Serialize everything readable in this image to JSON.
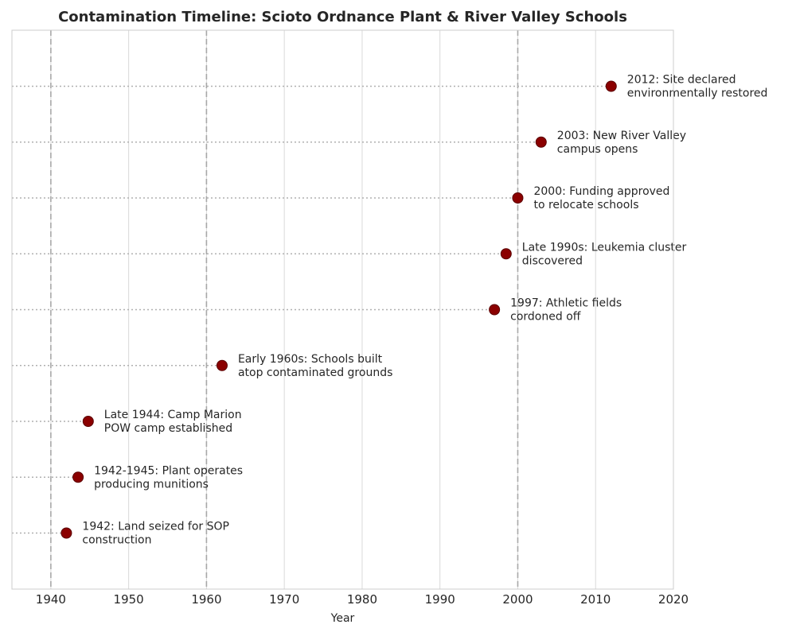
{
  "chart_data": {
    "type": "scatter",
    "title": "Contamination Timeline: Scioto Ordnance Plant & River Valley Schools",
    "xlabel": "Year",
    "ylabel": "",
    "xlim": [
      1935,
      2020
    ],
    "x_ticks": [
      1940,
      1950,
      1960,
      1970,
      1980,
      1990,
      2000,
      2010,
      2020
    ],
    "grid": true,
    "marker_color": "#8b0000",
    "highlight_years": [
      1940,
      1960,
      2000
    ],
    "events": [
      {
        "x": 1942,
        "label": [
          "1942: Land seized for SOP",
          "construction"
        ]
      },
      {
        "x": 1943.5,
        "label": [
          "1942-1945: Plant operates",
          "producing munitions"
        ]
      },
      {
        "x": 1944.8,
        "label": [
          "Late 1944: Camp Marion",
          "POW camp established"
        ]
      },
      {
        "x": 1962,
        "label": [
          "Early 1960s: Schools built",
          "atop contaminated grounds"
        ]
      },
      {
        "x": 1997,
        "label": [
          "1997: Athletic fields",
          "cordoned off"
        ]
      },
      {
        "x": 1998.5,
        "label": [
          "Late 1990s: Leukemia cluster",
          "discovered"
        ]
      },
      {
        "x": 2000,
        "label": [
          "2000: Funding approved",
          "to relocate schools"
        ]
      },
      {
        "x": 2003,
        "label": [
          "2003: New River Valley",
          "campus opens"
        ]
      },
      {
        "x": 2012,
        "label": [
          "2012: Site declared",
          "environmentally restored"
        ]
      }
    ]
  }
}
